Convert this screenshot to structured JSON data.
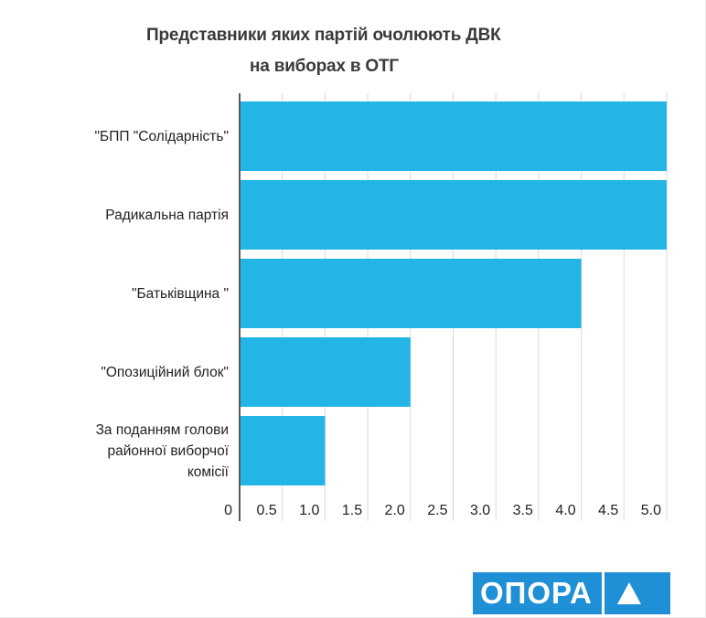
{
  "chart_data": {
    "type": "bar",
    "orientation": "horizontal",
    "title_lines": [
      "Представники яких партій очолюють ДВК",
      "на виборах в ОТГ"
    ],
    "categories": [
      "\"БПП \"Солідарність\"",
      "Радикальна партія",
      "\"Батьківщина \"",
      "\"Опозиційний блок\"",
      "За поданням голови районної виборчої комісії"
    ],
    "category_lines": [
      [
        "\"БПП \"Солідарність\""
      ],
      [
        "Радикальна партія"
      ],
      [
        "\"Батьківщина \""
      ],
      [
        "\"Опозиційний блок\""
      ],
      [
        "За поданням голови",
        "районної виборчої",
        "комісії"
      ]
    ],
    "values": [
      5,
      5,
      4,
      2,
      1
    ],
    "xlim": [
      0,
      5.0
    ],
    "ticks": [
      "0",
      "0.5",
      "1.0",
      "1.5",
      "2.0",
      "2.5",
      "3.0",
      "3.5",
      "4.0",
      "4.5",
      "5.0"
    ],
    "grid": true,
    "bar_color": "#23b5e6",
    "xlabel": "",
    "ylabel": ""
  },
  "logo": {
    "text": "ОПОРА",
    "color": "#1f8fd6"
  }
}
